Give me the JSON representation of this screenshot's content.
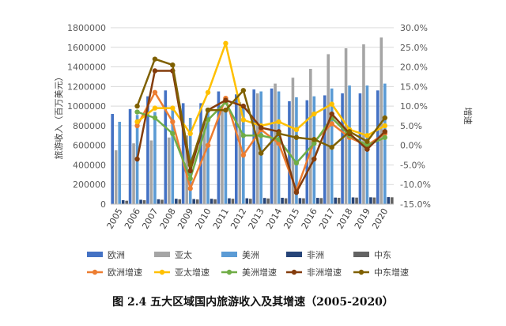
{
  "caption": "图 2.4 五大区域国内旅游收入及其增速（2005-2020）",
  "chart_data": {
    "type": "bar",
    "categories": [
      "2005",
      "2006",
      "2007",
      "2008",
      "2009",
      "2010",
      "2011",
      "2012",
      "2013",
      "2014",
      "2015",
      "2016",
      "2017",
      "2018",
      "2019",
      "2020"
    ],
    "ylabel": "旅游收入（百万美元）",
    "y2label": "增速",
    "ylim": [
      0,
      1800000
    ],
    "yticks": [
      "0",
      "200000",
      "400000",
      "600000",
      "800000",
      "1000000",
      "1200000",
      "1400000",
      "1600000",
      "1800000"
    ],
    "y2lim": [
      -15,
      30
    ],
    "y2ticks": [
      "-15.0%",
      "-10.0%",
      "-5.0%",
      "0.0%",
      "5.0%",
      "10.0%",
      "15.0%",
      "20.0%",
      "25.0%",
      "30.0%"
    ],
    "grid": true,
    "legend_position": "bottom",
    "bar_series": [
      {
        "name": "欧洲",
        "color": "#4472c4",
        "values": [
          920000,
          970000,
          1100000,
          1160000,
          1030000,
          1030000,
          1150000,
          1120000,
          1170000,
          1180000,
          1050000,
          1060000,
          1110000,
          1130000,
          1130000,
          1160000
        ]
      },
      {
        "name": "亚太",
        "color": "#a5a5a5",
        "values": [
          550000,
          620000,
          650000,
          680000,
          700000,
          840000,
          960000,
          1040000,
          1130000,
          1230000,
          1290000,
          1380000,
          1530000,
          1590000,
          1630000,
          1700000
        ]
      },
      {
        "name": "美洲",
        "color": "#5b9bd5",
        "values": [
          840000,
          910000,
          940000,
          960000,
          880000,
          940000,
          980000,
          1000000,
          1150000,
          1150000,
          1090000,
          1100000,
          1180000,
          1210000,
          1210000,
          1230000
        ]
      },
      {
        "name": "非洲",
        "color": "#264478",
        "values": [
          40000,
          45000,
          50000,
          55000,
          52000,
          55000,
          60000,
          60000,
          63000,
          65000,
          62000,
          64000,
          67000,
          69000,
          70000,
          72000
        ]
      },
      {
        "name": "中东",
        "color": "#636363",
        "values": [
          35000,
          40000,
          45000,
          50000,
          48000,
          50000,
          55000,
          55000,
          58000,
          60000,
          60000,
          62000,
          65000,
          67000,
          68000,
          70000
        ]
      }
    ],
    "line_series": [
      {
        "name": "欧洲增速",
        "color": "#ed7d31",
        "values": [
          null,
          5.0,
          13.5,
          6.0,
          -11.0,
          0.0,
          12.0,
          -2.5,
          4.0,
          0.5,
          -11.5,
          1.0,
          5.5,
          2.0,
          0.0,
          3.0
        ]
      },
      {
        "name": "亚太增速",
        "color": "#ffc000",
        "values": [
          null,
          6.0,
          9.5,
          9.5,
          3.0,
          13.5,
          26.0,
          6.5,
          5.0,
          6.0,
          4.0,
          8.0,
          10.5,
          4.0,
          2.5,
          5.0
        ]
      },
      {
        "name": "美洲增速",
        "color": "#70ad47",
        "values": [
          null,
          8.5,
          7.0,
          3.0,
          -8.5,
          6.5,
          11.0,
          2.5,
          2.5,
          1.5,
          -4.5,
          0.5,
          7.0,
          2.5,
          0.0,
          2.0
        ]
      },
      {
        "name": "非洲增速",
        "color": "#843c0c",
        "values": [
          null,
          -3.5,
          19.0,
          19.0,
          -6.5,
          9.0,
          11.5,
          10.0,
          4.5,
          3.5,
          -12.0,
          -3.5,
          8.0,
          3.0,
          -1.0,
          3.5
        ]
      },
      {
        "name": "中东增速",
        "color": "#7f6000",
        "values": [
          null,
          10.0,
          22.0,
          20.5,
          -5.0,
          9.0,
          9.0,
          14.0,
          -2.0,
          3.0,
          2.0,
          1.5,
          -0.5,
          3.5,
          1.0,
          7.0
        ]
      }
    ]
  }
}
